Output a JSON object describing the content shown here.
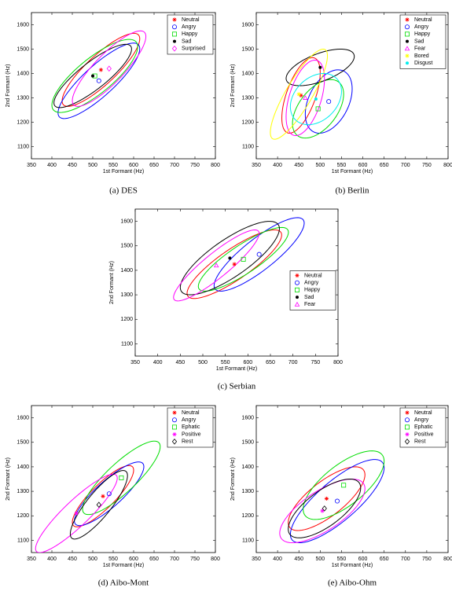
{
  "chart_data": [
    {
      "type": "scatter",
      "caption": "(a)  DES",
      "xlabel": "1st Formant (Hz)",
      "ylabel": "2nd Formant (Hz)",
      "xlim": [
        350,
        800
      ],
      "ylim": [
        1050,
        1650
      ],
      "xticks": [
        350,
        400,
        450,
        500,
        550,
        600,
        650,
        700,
        750,
        800
      ],
      "yticks": [
        1100,
        1200,
        1300,
        1400,
        1500,
        1600
      ],
      "legend": "upper right",
      "series": [
        {
          "name": "Neutral",
          "color": "#ff0000",
          "marker": "star",
          "x": 520,
          "y": 1415,
          "sx": 95,
          "sy": 150,
          "rho": 0.85
        },
        {
          "name": "Angry",
          "color": "#0000ff",
          "marker": "circle",
          "x": 515,
          "y": 1370,
          "sx": 100,
          "sy": 155,
          "rho": 0.85
        },
        {
          "name": "Happy",
          "color": "#00dd00",
          "marker": "square",
          "x": 505,
          "y": 1390,
          "sx": 105,
          "sy": 150,
          "rho": 0.8
        },
        {
          "name": "Sad",
          "color": "#000000",
          "marker": "dot",
          "x": 500,
          "y": 1390,
          "sx": 95,
          "sy": 130,
          "rho": 0.85
        },
        {
          "name": "Surprised",
          "color": "#ff00ff",
          "marker": "diamond",
          "x": 540,
          "y": 1420,
          "sx": 90,
          "sy": 155,
          "rho": 0.85
        }
      ]
    },
    {
      "type": "scatter",
      "caption": "(b)  Berlin",
      "xlabel": "1st Formant (Hz)",
      "ylabel": "2nd Formant (Hz)",
      "xlim": [
        350,
        800
      ],
      "ylim": [
        1050,
        1650
      ],
      "xticks": [
        350,
        400,
        450,
        500,
        550,
        600,
        650,
        700,
        750,
        800
      ],
      "yticks": [
        1100,
        1200,
        1300,
        1400,
        1500,
        1600
      ],
      "legend": "upper right",
      "series": [
        {
          "name": "Neutral",
          "color": "#ff0000",
          "marker": "star",
          "x": 455,
          "y": 1310,
          "sx": 45,
          "sy": 155,
          "rho": 0.6
        },
        {
          "name": "Angry",
          "color": "#0000ff",
          "marker": "circle",
          "x": 520,
          "y": 1285,
          "sx": 55,
          "sy": 130,
          "rho": 0.4
        },
        {
          "name": "Happy",
          "color": "#00dd00",
          "marker": "square",
          "x": 495,
          "y": 1255,
          "sx": 60,
          "sy": 120,
          "rho": 0.5
        },
        {
          "name": "Sad",
          "color": "#000000",
          "marker": "dot",
          "x": 500,
          "y": 1425,
          "sx": 80,
          "sy": 75,
          "rho": 0.6
        },
        {
          "name": "Fear",
          "color": "#ff00ff",
          "marker": "triangle",
          "x": 465,
          "y": 1300,
          "sx": 45,
          "sy": 155,
          "rho": 0.5
        },
        {
          "name": "Bored",
          "color": "#ffff00",
          "marker": "star",
          "x": 450,
          "y": 1315,
          "sx": 67,
          "sy": 185,
          "rho": 0.85
        },
        {
          "name": "Disgust",
          "color": "#00eeee",
          "marker": "dot",
          "x": 490,
          "y": 1295,
          "sx": 60,
          "sy": 105,
          "rho": 0.3
        }
      ]
    },
    {
      "type": "scatter",
      "caption": "(c)  Serbian",
      "xlabel": "1st Formant (Hz)",
      "ylabel": "2nd Formant (Hz)",
      "xlim": [
        350,
        800
      ],
      "ylim": [
        1050,
        1650
      ],
      "xticks": [
        350,
        400,
        450,
        500,
        550,
        600,
        650,
        700,
        750,
        800
      ],
      "yticks": [
        1100,
        1200,
        1300,
        1400,
        1500,
        1600
      ],
      "legend": "center right",
      "series": [
        {
          "name": "Neutral",
          "color": "#ff0000",
          "marker": "star",
          "x": 570,
          "y": 1425,
          "sx": 105,
          "sy": 140,
          "rho": 0.85
        },
        {
          "name": "Angry",
          "color": "#0000ff",
          "marker": "circle",
          "x": 625,
          "y": 1465,
          "sx": 100,
          "sy": 150,
          "rho": 0.85
        },
        {
          "name": "Happy",
          "color": "#00dd00",
          "marker": "square",
          "x": 590,
          "y": 1445,
          "sx": 100,
          "sy": 130,
          "rho": 0.85
        },
        {
          "name": "Sad",
          "color": "#000000",
          "marker": "dot",
          "x": 560,
          "y": 1450,
          "sx": 110,
          "sy": 150,
          "rho": 0.8
        },
        {
          "name": "Fear",
          "color": "#ff00ff",
          "marker": "triangle",
          "x": 530,
          "y": 1420,
          "sx": 95,
          "sy": 145,
          "rho": 0.9
        }
      ]
    },
    {
      "type": "scatter",
      "caption": "(d)  Aibo-Mont",
      "xlabel": "1st Formant (Hz)",
      "ylabel": "2nd Formant (Hz)",
      "xlim": [
        350,
        800
      ],
      "ylim": [
        1050,
        1650
      ],
      "xticks": [
        350,
        400,
        450,
        500,
        550,
        600,
        650,
        700,
        750,
        800
      ],
      "yticks": [
        1100,
        1200,
        1300,
        1400,
        1500,
        1600
      ],
      "legend": "upper right",
      "series": [
        {
          "name": "Neutral",
          "color": "#ff0000",
          "marker": "star",
          "x": 525,
          "y": 1280,
          "sx": 75,
          "sy": 125,
          "rho": 0.85
        },
        {
          "name": "Angry",
          "color": "#0000ff",
          "marker": "circle",
          "x": 540,
          "y": 1290,
          "sx": 85,
          "sy": 130,
          "rho": 0.85
        },
        {
          "name": "Ephatic",
          "color": "#00dd00",
          "marker": "square",
          "x": 570,
          "y": 1355,
          "sx": 95,
          "sy": 150,
          "rho": 0.85
        },
        {
          "name": "Positive",
          "color": "#ff00ff",
          "marker": "star",
          "x": 460,
          "y": 1210,
          "sx": 100,
          "sy": 160,
          "rho": 0.9
        },
        {
          "name": "Rest",
          "color": "#000000",
          "marker": "diamond",
          "x": 515,
          "y": 1245,
          "sx": 70,
          "sy": 140,
          "rho": 0.85
        }
      ]
    },
    {
      "type": "scatter",
      "caption": "(e)  Aibo-Ohm",
      "xlabel": "1st Formant (Hz)",
      "ylabel": "2nd Formant (Hz)",
      "xlim": [
        350,
        800
      ],
      "ylim": [
        1050,
        1650
      ],
      "xticks": [
        350,
        400,
        450,
        500,
        550,
        600,
        650,
        700,
        750,
        800
      ],
      "yticks": [
        1100,
        1200,
        1300,
        1400,
        1500,
        1600
      ],
      "legend": "upper right",
      "series": [
        {
          "name": "Neutral",
          "color": "#ff0000",
          "marker": "star",
          "x": 515,
          "y": 1270,
          "sx": 90,
          "sy": 130,
          "rho": 0.75
        },
        {
          "name": "Angry",
          "color": "#0000ff",
          "marker": "circle",
          "x": 540,
          "y": 1260,
          "sx": 110,
          "sy": 170,
          "rho": 0.8
        },
        {
          "name": "Ephatic",
          "color": "#00dd00",
          "marker": "square",
          "x": 555,
          "y": 1325,
          "sx": 95,
          "sy": 140,
          "rho": 0.7
        },
        {
          "name": "Positive",
          "color": "#ff00ff",
          "marker": "star",
          "x": 505,
          "y": 1220,
          "sx": 100,
          "sy": 130,
          "rho": 0.7
        },
        {
          "name": "Rest",
          "color": "#000000",
          "marker": "diamond",
          "x": 510,
          "y": 1230,
          "sx": 85,
          "sy": 120,
          "rho": 0.7
        }
      ]
    }
  ]
}
